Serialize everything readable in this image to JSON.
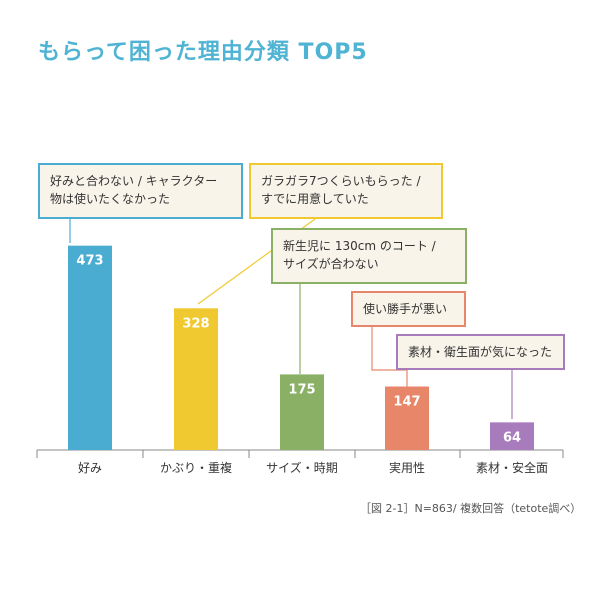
{
  "title": "もらって困った理由分類 TOP5",
  "source_note": "［図 2-1］N=863/ 複数回答（tetote調べ）",
  "chart_data": {
    "type": "bar",
    "title": "もらって困った理由分類 TOP5",
    "categories": [
      "好み",
      "かぶり・重複",
      "サイズ・時期",
      "実用性",
      "素材・安全面"
    ],
    "values": [
      473,
      328,
      175,
      147,
      64
    ],
    "ylim": [
      0,
      500
    ],
    "grid": false,
    "legend": "none",
    "bar_colors": [
      "#4bacd1",
      "#f0c930",
      "#89b065",
      "#e8866a",
      "#a87bbd"
    ],
    "callouts": [
      {
        "lines": [
          "好みと合わない / キャラクター",
          "物は使いたくなかった"
        ]
      },
      {
        "lines": [
          "ガラガラ7つくらいもらった /",
          "すでに用意していた"
        ]
      },
      {
        "lines": [
          "新生児に 130cm のコート /",
          "サイズが合わない"
        ]
      },
      {
        "lines": [
          "使い勝手が悪い"
        ]
      },
      {
        "lines": [
          "素材・衛生面が気になった"
        ]
      }
    ]
  }
}
